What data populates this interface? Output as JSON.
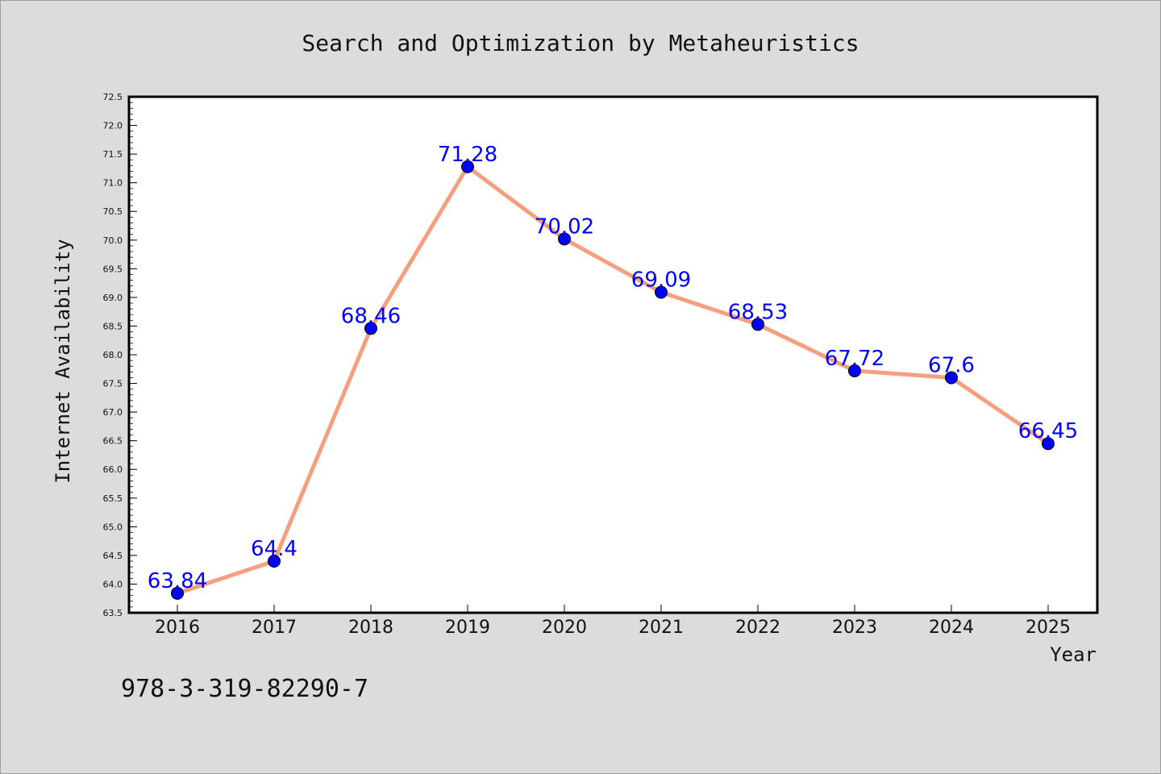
{
  "chart_data": {
    "type": "line",
    "title": "Search and Optimization by Metaheuristics",
    "xlabel": "Year",
    "ylabel": "Internet Availability",
    "categories": [
      "2016",
      "2017",
      "2018",
      "2019",
      "2020",
      "2021",
      "2022",
      "2023",
      "2024",
      "2025"
    ],
    "series": [
      {
        "values": [
          63.84,
          64.4,
          68.46,
          71.28,
          70.02,
          69.09,
          68.53,
          67.72,
          67.6,
          66.45
        ]
      }
    ],
    "data_labels": [
      "63.84",
      "64.4",
      "68.46",
      "71.28",
      "70.02",
      "69.09",
      "68.53",
      "67.72",
      "67.6",
      "66.45"
    ],
    "y_ticks": [
      "63.5",
      "64.0",
      "64.5",
      "65.0",
      "65.5",
      "66.0",
      "66.5",
      "67.0",
      "67.5",
      "68.0",
      "68.5",
      "69.0",
      "69.5",
      "70.0",
      "70.5",
      "71.0",
      "71.5",
      "72.0",
      "72.5"
    ],
    "ylim": [
      63.5,
      72.5
    ],
    "grid": false,
    "legend": "none",
    "colors": {
      "line": "#f4a07f",
      "marker": "#0000ff",
      "label": "#0000ff",
      "background": "#dcdcdc",
      "plot_background": "#ffffff"
    }
  },
  "footnote": "978-3-319-82290-7"
}
